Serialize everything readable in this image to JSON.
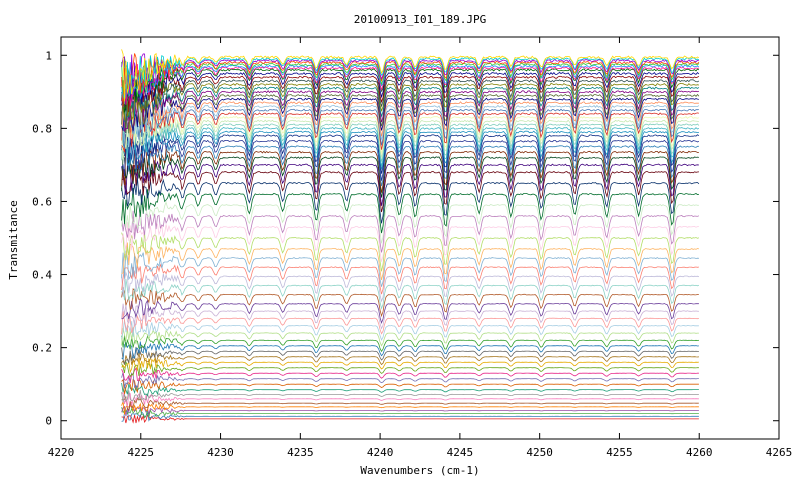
{
  "chart_data": {
    "type": "line",
    "title": "20100913_I01_189.JPG",
    "xlabel": "Wavenumbers (cm-1)",
    "ylabel": "Transmitance",
    "xlim": [
      4220,
      4265
    ],
    "ylim": [
      -0.05,
      1.05
    ],
    "x_ticks": [
      4220,
      4225,
      4230,
      4235,
      4240,
      4245,
      4250,
      4255,
      4260,
      4265
    ],
    "y_ticks": [
      0,
      0.2,
      0.4,
      0.6,
      0.8,
      1
    ],
    "y_tick_labels": [
      "0",
      "0.2",
      "0.4",
      "0.6",
      "0.8",
      "1"
    ],
    "grid": false,
    "legend": "none",
    "x_range_data": [
      4223.8,
      4260
    ],
    "absorption_lines_x": [
      4227.6,
      4228.6,
      4229.7,
      4231.8,
      4233.9,
      4236.0,
      4237.9,
      4240.1,
      4241.2,
      4242.2,
      4244.1,
      4246.2,
      4248.2,
      4250.1,
      4252.2,
      4254.2,
      4256.2,
      4258.3
    ],
    "absorption_relative_depth": [
      0.35,
      0.3,
      0.3,
      0.5,
      0.45,
      0.7,
      0.45,
      1.0,
      0.55,
      0.6,
      0.85,
      0.5,
      0.6,
      0.65,
      0.55,
      0.6,
      0.55,
      0.8
    ],
    "series_levels": [
      0.005,
      0.012,
      0.02,
      0.028,
      0.038,
      0.048,
      0.06,
      0.072,
      0.085,
      0.1,
      0.115,
      0.13,
      0.145,
      0.16,
      0.175,
      0.19,
      0.205,
      0.22,
      0.24,
      0.26,
      0.28,
      0.3,
      0.32,
      0.345,
      0.37,
      0.395,
      0.42,
      0.445,
      0.47,
      0.5,
      0.53,
      0.56,
      0.59,
      0.62,
      0.65,
      0.68,
      0.7,
      0.72,
      0.735,
      0.75,
      0.765,
      0.78,
      0.79,
      0.8,
      0.81,
      0.82,
      0.83,
      0.84,
      0.85,
      0.86,
      0.87,
      0.88,
      0.89,
      0.9,
      0.91,
      0.92,
      0.93,
      0.94,
      0.95,
      0.96,
      0.965,
      0.97,
      0.975,
      0.98,
      0.985,
      0.99,
      0.995
    ],
    "series_colors": [
      "#e41a1c",
      "#377eb8",
      "#4daf4a",
      "#984ea3",
      "#ff7f00",
      "#a65628",
      "#f781bf",
      "#999999",
      "#1b9e77",
      "#d95f02",
      "#7570b3",
      "#e7298a",
      "#66a61e",
      "#e6ab02",
      "#a6761d",
      "#666666",
      "#1f78b4",
      "#33a02c",
      "#b2df8a",
      "#a6cee3",
      "#fb9a99",
      "#cab2d6",
      "#6a3d9a",
      "#b15928",
      "#8dd3c7",
      "#bebada",
      "#fb8072",
      "#80b1d3",
      "#fdb462",
      "#b3de69",
      "#fccde5",
      "#bc80bd",
      "#ccebc5",
      "#006d2c",
      "#08306b",
      "#67000d",
      "#3f007d",
      "#00441b",
      "#7f2704",
      "#2c7fb8",
      "#253494",
      "#0c2c84",
      "#1d91c0",
      "#41b6c4",
      "#7fcdbb",
      "#c7e9b4",
      "#edf8b1",
      "#d73027",
      "#4575b4",
      "#91bfdb",
      "#fc8d59",
      "#000080",
      "#556b2f",
      "#800080",
      "#008080",
      "#808000",
      "#2f4f4f",
      "#8b0000",
      "#00008b",
      "#006400",
      "#ff1493",
      "#1e90ff",
      "#32cd32",
      "#ff4500",
      "#9400d3",
      "#00ced1",
      "#ffd700"
    ]
  }
}
